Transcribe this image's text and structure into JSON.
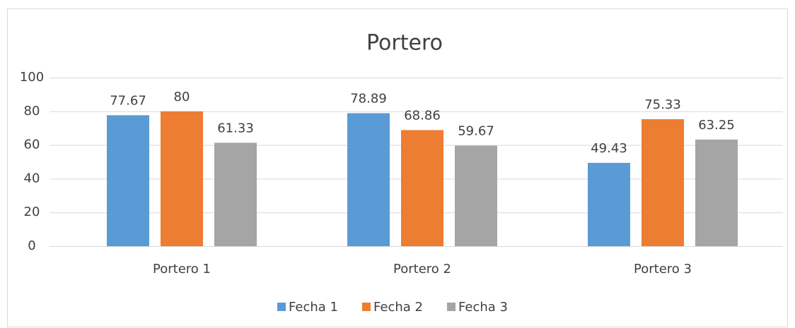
{
  "chart_data": {
    "type": "bar",
    "title": "Portero",
    "categories": [
      "Portero 1",
      "Portero 2",
      "Portero 3"
    ],
    "series": [
      {
        "name": "Fecha 1",
        "color": "#5b9bd5",
        "values": [
          77.67,
          78.89,
          49.43
        ]
      },
      {
        "name": "Fecha 2",
        "color": "#ed7d31",
        "values": [
          80,
          68.86,
          75.33
        ]
      },
      {
        "name": "Fecha 3",
        "color": "#a5a5a5",
        "values": [
          61.33,
          59.67,
          63.25
        ]
      }
    ],
    "ylim": [
      0,
      100
    ],
    "yticks": [
      0,
      20,
      40,
      60,
      80,
      100
    ],
    "grid": true,
    "legend": "bottom"
  }
}
